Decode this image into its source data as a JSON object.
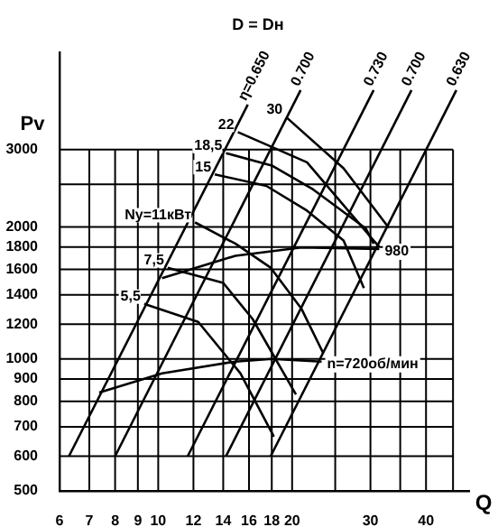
{
  "chart_data": {
    "type": "line",
    "title": "D = Dн",
    "xlabel": "Q",
    "ylabel": "Pv",
    "log": "xy",
    "grid": true,
    "marker": "none",
    "line_style": "solid",
    "xlim": [
      6,
      50
    ],
    "ylim": [
      500,
      5000
    ],
    "xticks": [
      6,
      7,
      8,
      9,
      10,
      12,
      14,
      16,
      18,
      20,
      {
        "value": 25,
        "label": null
      },
      30,
      {
        "value": 35,
        "label": null
      },
      40,
      {
        "value": 46,
        "label": null
      }
    ],
    "yticks": [
      500,
      600,
      700,
      800,
      900,
      1000,
      1200,
      1400,
      1600,
      1800,
      2000,
      {
        "value": 2500,
        "label": null
      },
      3000
    ],
    "series": [
      {
        "name": "η=0.650",
        "color": "#000000",
        "x": [
          6.3,
          15.9
        ],
        "values": [
          600,
          3800
        ]
      },
      {
        "name": "0.700",
        "color": "#000000",
        "x": [
          8,
          20.9
        ],
        "values": [
          600,
          4100
        ]
      },
      {
        "name": "0.730",
        "color": "#000000",
        "x": [
          11.65,
          30.5
        ],
        "values": [
          600,
          4100
        ]
      },
      {
        "name": "0.700",
        "color": "#000000",
        "x": [
          14.2,
          37.1
        ],
        "values": [
          600,
          4100
        ]
      },
      {
        "name": "0.630",
        "color": "#000000",
        "x": [
          17.9,
          46.8
        ],
        "values": [
          600,
          4100
        ]
      },
      {
        "name": "5,5",
        "color": "#000000",
        "x": [
          18.2,
          15.3,
          12.3,
          9.3
        ],
        "values": [
          665,
          927,
          1214,
          1335
        ]
      },
      {
        "name": "7,5",
        "color": "#000000",
        "x": [
          20.4,
          16.3,
          14,
          10.5
        ],
        "values": [
          830,
          1233,
          1490,
          1614
        ]
      },
      {
        "name": "Ny=11кВт",
        "color": "#000000",
        "x": [
          23.5,
          21,
          17.9,
          14.9,
          12.1
        ],
        "values": [
          1030,
          1300,
          1614,
          1832,
          2047
        ]
      },
      {
        "name": "15",
        "color": "#000000",
        "x": [
          29,
          26.1,
          21.6,
          17.5,
          13.4
        ],
        "values": [
          1450,
          1861,
          2178,
          2480,
          2635
        ]
      },
      {
        "name": "18,5",
        "color": "#000000",
        "x": [
          30.5,
          29.3,
          22.3,
          18,
          14.2
        ],
        "values": [
          1830,
          1982,
          2434,
          2760,
          2946
        ]
      },
      {
        "name": "22",
        "color": "#000000",
        "x": [
          31.4,
          30.5,
          21.6,
          15.1
        ],
        "values": [
          1800,
          1862,
          2806,
          3290
        ]
      },
      {
        "name": "30",
        "color": "#000000",
        "x": [
          33,
          26.1,
          19.4
        ],
        "values": [
          1990,
          2721,
          3557
        ]
      },
      {
        "name": "n=720об/мин",
        "color": "#000000",
        "x": [
          7.37,
          10.2,
          14.9,
          18,
          23.3
        ],
        "values": [
          838,
          927,
          986,
          1000,
          986
        ]
      },
      {
        "name": "980",
        "color": "#000000",
        "x": [
          10.2,
          14.9,
          21,
          31.4
        ],
        "values": [
          1528,
          1718,
          1795,
          1780
        ]
      }
    ]
  }
}
